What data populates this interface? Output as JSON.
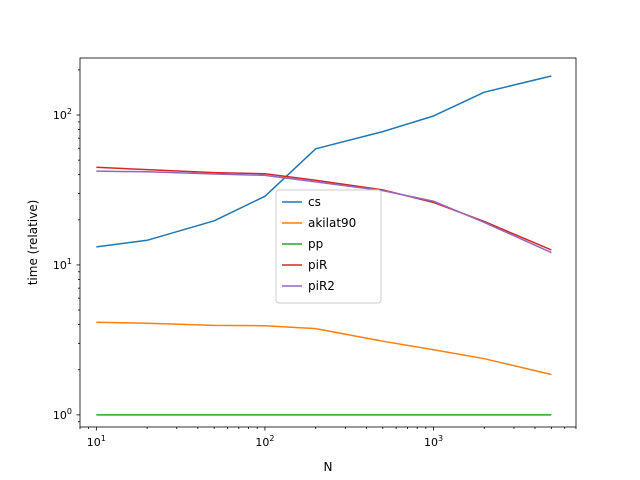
{
  "chart_data": {
    "type": "line",
    "xscale": "log",
    "yscale": "log",
    "xlabel": "N",
    "ylabel": "time (relative)",
    "xlim": [
      8,
      7000
    ],
    "ylim": [
      0.83,
      240
    ],
    "x_ticks": [
      10,
      100,
      1000
    ],
    "x_tick_labels": [
      {
        "base": "10",
        "exp": "1"
      },
      {
        "base": "10",
        "exp": "2"
      },
      {
        "base": "10",
        "exp": "3"
      }
    ],
    "y_ticks": [
      1,
      10,
      100
    ],
    "y_tick_labels": [
      {
        "base": "10",
        "exp": "0"
      },
      {
        "base": "10",
        "exp": "1"
      },
      {
        "base": "10",
        "exp": "2"
      }
    ],
    "grid": false,
    "legend_position": "center",
    "x": [
      10,
      20,
      50,
      100,
      200,
      500,
      1000,
      2000,
      5000
    ],
    "series": [
      {
        "name": "cs",
        "color": "#1f77b4",
        "values": [
          13.2,
          14.6,
          19.7,
          28.7,
          59.5,
          77.5,
          98.5,
          142,
          182
        ]
      },
      {
        "name": "akilat90",
        "color": "#ff7f0e",
        "values": [
          4.15,
          4.08,
          3.95,
          3.93,
          3.76,
          3.1,
          2.72,
          2.37,
          1.86
        ]
      },
      {
        "name": "pp",
        "color": "#2ca02c",
        "values": [
          1.0,
          1.0,
          1.0,
          1.0,
          1.0,
          1.0,
          1.0,
          1.0,
          1.0
        ]
      },
      {
        "name": "piR",
        "color": "#d62728",
        "values": [
          44.8,
          43.2,
          41.3,
          40.6,
          36.7,
          31.7,
          26.1,
          19.5,
          12.6
        ]
      },
      {
        "name": "piR2",
        "color": "#9467bd",
        "values": [
          42.2,
          41.8,
          40.4,
          39.6,
          35.8,
          31.3,
          26.6,
          19.2,
          12.1
        ]
      }
    ]
  }
}
